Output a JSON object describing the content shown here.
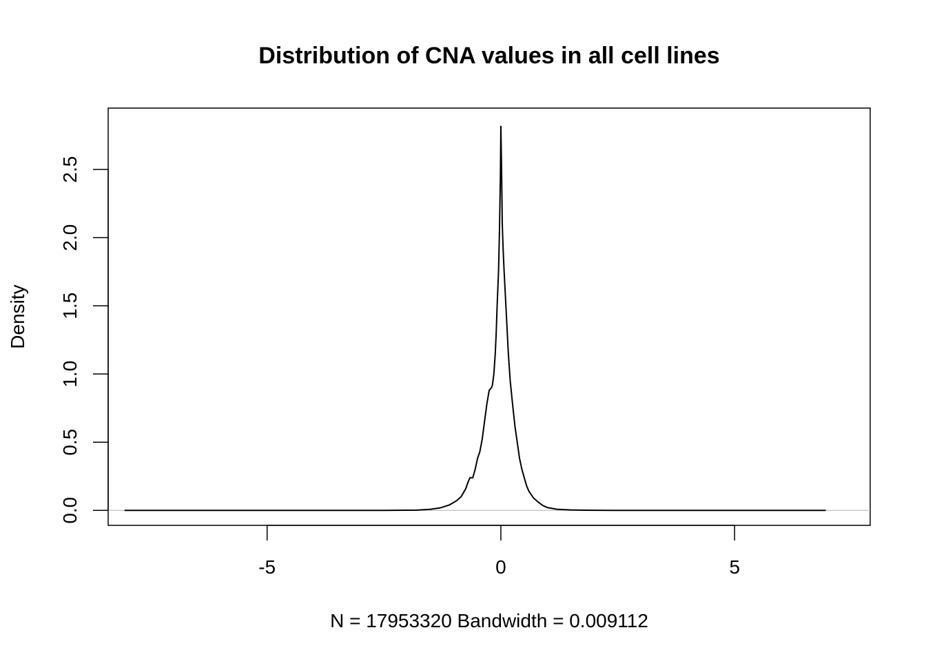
{
  "chart_data": {
    "type": "line",
    "title": "Distribution of CNA values in all cell lines",
    "xlabel": "N = 17953320   Bandwidth = 0.009112",
    "ylabel": "Density",
    "xlim": [
      -8.4,
      7.9
    ],
    "ylim": [
      -0.11,
      2.95
    ],
    "x_ticks": [
      {
        "value": -5,
        "label": "-5"
      },
      {
        "value": 0,
        "label": "0"
      },
      {
        "value": 5,
        "label": "5"
      }
    ],
    "y_ticks": [
      {
        "value": 0.0,
        "label": "0.0"
      },
      {
        "value": 0.5,
        "label": "0.5"
      },
      {
        "value": 1.0,
        "label": "1.0"
      },
      {
        "value": 1.5,
        "label": "1.5"
      },
      {
        "value": 2.0,
        "label": "2.0"
      },
      {
        "value": 2.5,
        "label": "2.5"
      }
    ],
    "zero_line": true,
    "grid": false,
    "series": [
      {
        "color": "#000000",
        "points": [
          [
            -8.05,
            0.0
          ],
          [
            -2.5,
            0.0
          ],
          [
            -1.8,
            0.002
          ],
          [
            -1.5,
            0.008
          ],
          [
            -1.3,
            0.018
          ],
          [
            -1.1,
            0.04
          ],
          [
            -0.95,
            0.07
          ],
          [
            -0.85,
            0.1
          ],
          [
            -0.75,
            0.16
          ],
          [
            -0.7,
            0.21
          ],
          [
            -0.66,
            0.24
          ],
          [
            -0.6,
            0.24
          ],
          [
            -0.55,
            0.3
          ],
          [
            -0.5,
            0.38
          ],
          [
            -0.45,
            0.43
          ],
          [
            -0.4,
            0.52
          ],
          [
            -0.35,
            0.65
          ],
          [
            -0.3,
            0.78
          ],
          [
            -0.25,
            0.88
          ],
          [
            -0.2,
            0.9
          ],
          [
            -0.18,
            0.92
          ],
          [
            -0.15,
            1.0
          ],
          [
            -0.12,
            1.15
          ],
          [
            -0.1,
            1.3
          ],
          [
            -0.08,
            1.5
          ],
          [
            -0.05,
            1.75
          ],
          [
            -0.03,
            2.05
          ],
          [
            -0.01,
            2.45
          ],
          [
            0.0,
            2.82
          ],
          [
            0.015,
            2.5
          ],
          [
            0.03,
            2.1
          ],
          [
            0.05,
            1.9
          ],
          [
            0.07,
            1.75
          ],
          [
            0.1,
            1.55
          ],
          [
            0.13,
            1.35
          ],
          [
            0.16,
            1.15
          ],
          [
            0.2,
            0.95
          ],
          [
            0.25,
            0.78
          ],
          [
            0.3,
            0.62
          ],
          [
            0.35,
            0.5
          ],
          [
            0.4,
            0.38
          ],
          [
            0.45,
            0.3
          ],
          [
            0.5,
            0.24
          ],
          [
            0.55,
            0.18
          ],
          [
            0.6,
            0.14
          ],
          [
            0.7,
            0.09
          ],
          [
            0.8,
            0.06
          ],
          [
            0.9,
            0.035
          ],
          [
            1.0,
            0.02
          ],
          [
            1.2,
            0.008
          ],
          [
            1.5,
            0.003
          ],
          [
            1.8,
            0.001
          ],
          [
            2.5,
            0.0
          ],
          [
            6.95,
            0.0
          ]
        ]
      }
    ]
  }
}
